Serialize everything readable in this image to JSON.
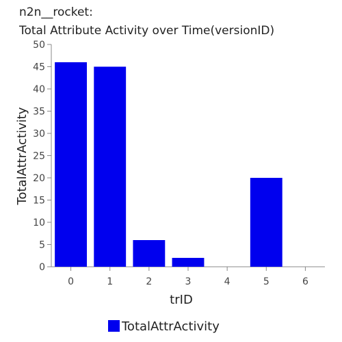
{
  "chart_data": {
    "type": "bar",
    "title_lines": [
      "n2n__rocket:",
      "Total Attribute Activity over Time(versionID)"
    ],
    "xlabel": "trID",
    "ylabel": "TotalAttrActivity",
    "categories": [
      "0",
      "1",
      "2",
      "3",
      "4",
      "5",
      "6"
    ],
    "series": [
      {
        "name": "TotalAttrActivity",
        "values": [
          46,
          45,
          6,
          2,
          0,
          20,
          0
        ],
        "color": "#0000ee"
      }
    ],
    "ylim": [
      0,
      50
    ],
    "yticks": [
      0,
      5,
      10,
      15,
      20,
      25,
      30,
      35,
      40,
      45,
      50
    ],
    "grid": false,
    "legend_position": "bottom-center"
  }
}
